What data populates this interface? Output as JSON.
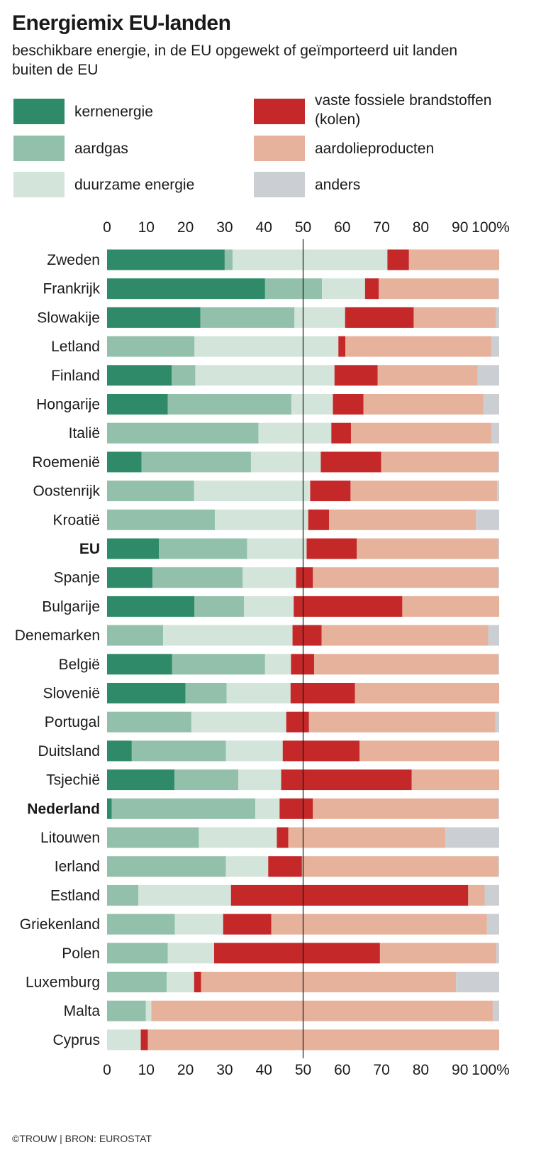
{
  "chart_data": {
    "type": "bar",
    "orientation": "horizontal",
    "stacked": true,
    "title": "Energiemix EU-landen",
    "subtitle": "beschikbare energie, in de EU opgewekt of geïmporteerd uit landen buiten de EU",
    "source": "©TROUW | BRON: EUROSTAT",
    "xlim": [
      0,
      100
    ],
    "ticks": [
      "0",
      "10",
      "20",
      "30",
      "40",
      "50",
      "60",
      "70",
      "80",
      "90",
      "100%"
    ],
    "reference_line": 50,
    "legend": [
      {
        "key": "kern",
        "label": "kernenergie",
        "color": "#2e8a68"
      },
      {
        "key": "gas",
        "label": "aardgas",
        "color": "#93c0aa"
      },
      {
        "key": "duur",
        "label": "duurzame energie",
        "color": "#d3e5da"
      },
      {
        "key": "kolen",
        "label": "vaste fossiele brandstoffen (kolen)",
        "color": "#c42828"
      },
      {
        "key": "olie",
        "label": "aardolieproducten",
        "color": "#e6b29c"
      },
      {
        "key": "anders",
        "label": "anders",
        "color": "#cbcfd4"
      }
    ],
    "series_order": [
      "kern",
      "gas",
      "duur",
      "kolen",
      "olie",
      "anders"
    ],
    "categories": [
      {
        "name": "Zweden",
        "bold": false,
        "values": [
          30,
          2,
          39.5,
          5.5,
          23,
          0
        ]
      },
      {
        "name": "Frankrijk",
        "bold": false,
        "values": [
          40.3,
          14.5,
          11,
          3.5,
          30.5,
          0.2
        ]
      },
      {
        "name": "Slowakije",
        "bold": false,
        "values": [
          23.8,
          24,
          12.9,
          17.5,
          21,
          0.8
        ]
      },
      {
        "name": "Letland",
        "bold": false,
        "values": [
          0,
          22.3,
          36.7,
          1.8,
          37.2,
          2
        ]
      },
      {
        "name": "Finland",
        "bold": false,
        "values": [
          16.5,
          6,
          35.5,
          11,
          25.5,
          5.5
        ]
      },
      {
        "name": "Hongarije",
        "bold": false,
        "values": [
          15.5,
          31.5,
          10.6,
          7.8,
          30.6,
          4
        ]
      },
      {
        "name": "Italië",
        "bold": false,
        "values": [
          0,
          38.6,
          18.6,
          5,
          35.8,
          2
        ]
      },
      {
        "name": "Roemenië",
        "bold": false,
        "values": [
          8.8,
          27.9,
          17.8,
          15.4,
          29.9,
          0.2
        ]
      },
      {
        "name": "Oostenrijk",
        "bold": false,
        "values": [
          0,
          22.2,
          29.6,
          10.3,
          37.4,
          0.5
        ]
      },
      {
        "name": "Kroatië",
        "bold": false,
        "values": [
          0,
          27.5,
          23.8,
          5.3,
          37.5,
          5.9
        ]
      },
      {
        "name": "EU",
        "bold": true,
        "values": [
          13.2,
          22.5,
          15.2,
          12.8,
          36.1,
          0.2
        ]
      },
      {
        "name": "Spanje",
        "bold": false,
        "values": [
          11.6,
          23,
          13.6,
          4.3,
          47.3,
          0.2
        ]
      },
      {
        "name": "Bulgarije",
        "bold": false,
        "values": [
          22.3,
          12.6,
          12.7,
          27.7,
          24.7,
          0
        ]
      },
      {
        "name": "Denemarken",
        "bold": false,
        "values": [
          0,
          14.3,
          33,
          7.4,
          42.5,
          2.8
        ]
      },
      {
        "name": "België",
        "bold": false,
        "values": [
          16.6,
          23.7,
          6.6,
          5.9,
          47,
          0.2
        ]
      },
      {
        "name": "Slovenië",
        "bold": false,
        "values": [
          20,
          10.5,
          16.3,
          16.4,
          36.8,
          0
        ]
      },
      {
        "name": "Portugal",
        "bold": false,
        "values": [
          0,
          21.5,
          24.2,
          5.8,
          47.5,
          1
        ]
      },
      {
        "name": "Duitsland",
        "bold": false,
        "values": [
          6.3,
          24,
          14.5,
          19.6,
          35.6,
          0
        ]
      },
      {
        "name": "Tsjechië",
        "bold": false,
        "values": [
          17.2,
          16.3,
          10.9,
          33.3,
          22.3,
          0
        ]
      },
      {
        "name": "Nederland",
        "bold": true,
        "values": [
          1.2,
          36.6,
          6.2,
          8.5,
          47.3,
          0.2
        ]
      },
      {
        "name": "Litouwen",
        "bold": false,
        "values": [
          0,
          23.4,
          19.9,
          2.9,
          40.1,
          13.7
        ]
      },
      {
        "name": "Ierland",
        "bold": false,
        "values": [
          0,
          30.3,
          10.8,
          8.6,
          50.1,
          0.2
        ]
      },
      {
        "name": "Estland",
        "bold": false,
        "values": [
          0,
          8,
          23.6,
          60.5,
          4.2,
          3.7
        ]
      },
      {
        "name": "Griekenland",
        "bold": false,
        "values": [
          0,
          17.3,
          12.3,
          12.3,
          55,
          3.1
        ]
      },
      {
        "name": "Polen",
        "bold": false,
        "values": [
          0,
          15.5,
          11.8,
          42.3,
          29.7,
          0.7
        ]
      },
      {
        "name": "Luxemburg",
        "bold": false,
        "values": [
          0,
          15.2,
          7,
          1.8,
          65,
          11
        ]
      },
      {
        "name": "Malta",
        "bold": false,
        "values": [
          0,
          9.9,
          1.4,
          0,
          87.1,
          1.6
        ]
      },
      {
        "name": "Cyprus",
        "bold": false,
        "values": [
          0,
          0,
          8.6,
          1.8,
          89.6,
          0
        ]
      }
    ]
  }
}
